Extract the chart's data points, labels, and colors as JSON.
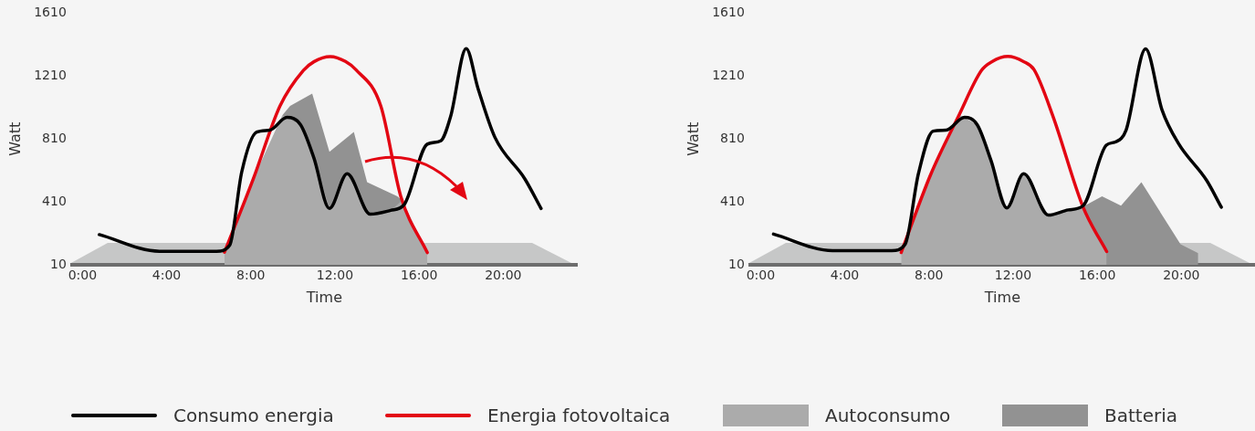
{
  "chart_data": [
    {
      "type": "line",
      "xlabel": "Time",
      "ylabel": "Watt",
      "xlim": [
        -0.5,
        23.5
      ],
      "xticks": [
        {
          "value": 0,
          "label": "0:00"
        },
        {
          "value": 4,
          "label": "4:00"
        },
        {
          "value": 8,
          "label": "8:00"
        },
        {
          "value": 12,
          "label": "12:00"
        },
        {
          "value": 16,
          "label": "16:00"
        },
        {
          "value": 20,
          "label": "20:00"
        }
      ],
      "ylim": [
        10,
        1610
      ],
      "yticks": [
        10,
        410,
        810,
        1210,
        1610
      ],
      "legend": "bottom",
      "series": [
        {
          "name": "Consumo energia",
          "type": "line",
          "color": "#000000",
          "x": [
            0.8,
            3.66,
            6.37,
            7.0,
            7.57,
            8.28,
            8.9,
            9.72,
            10.37,
            11.0,
            11.74,
            12.58,
            13.68,
            14.65,
            15.29,
            16.39,
            17.03,
            17.5,
            18.24,
            18.8,
            19.6,
            21.03,
            21.8
          ],
          "values": [
            202,
            96,
            96,
            135,
            600,
            854,
            866,
            947,
            900,
            690,
            368,
            589,
            332,
            356,
            392,
            777,
            798,
            953,
            1385,
            1132,
            822,
            556,
            368
          ]
        },
        {
          "name": "Energia fotovoltaica",
          "type": "line",
          "color": "#e30613",
          "x": [
            6.75,
            8.12,
            9.39,
            10.5,
            11.0,
            11.78,
            12.5,
            13.0,
            14.18,
            15.13,
            16.39
          ],
          "values": [
            90,
            556,
            1020,
            1246,
            1301,
            1334,
            1303,
            1250,
            1020,
            446,
            88
          ]
        },
        {
          "name": "Autoconsumo",
          "type": "area",
          "color": "#ababab",
          "x": [
            6.75,
            8.12,
            9.5,
            10.37,
            11.0,
            11.74,
            12.58,
            13.68,
            14.65,
            15.2,
            16.39
          ],
          "values": [
            90,
            556,
            960,
            900,
            690,
            368,
            589,
            332,
            356,
            420,
            88
          ]
        },
        {
          "name": "Batteria",
          "type": "area",
          "color": "#929292",
          "x": [
            9.5,
            9.87,
            10.92,
            11.74,
            12.9,
            13.53,
            14.97,
            15.2
          ],
          "values": [
            960,
            1020,
            1098,
            728,
            854,
            535,
            446,
            420
          ]
        }
      ]
    },
    {
      "type": "line",
      "xlabel": "Time",
      "ylabel": "Watt",
      "xlim": [
        -0.5,
        23.5
      ],
      "xticks": [
        {
          "value": 0,
          "label": "0:00"
        },
        {
          "value": 4,
          "label": "4:00"
        },
        {
          "value": 8,
          "label": "8:00"
        },
        {
          "value": 12,
          "label": "12:00"
        },
        {
          "value": 16,
          "label": "16:00"
        },
        {
          "value": 20,
          "label": "20:00"
        }
      ],
      "ylim": [
        10,
        1610
      ],
      "yticks": [
        10,
        410,
        810,
        1210,
        1610
      ],
      "series": [
        {
          "type": "line",
          "color": "#000000",
          "x": [
            0.61,
            3.42,
            6.23,
            6.87,
            7.5,
            8.2,
            8.82,
            9.69,
            10.3,
            10.95,
            11.7,
            12.5,
            13.68,
            14.63,
            15.33,
            16.43,
            16.89,
            17.37,
            18.3,
            19.08,
            19.87,
            21.2,
            21.9
          ],
          "values": [
            205,
            100,
            100,
            141,
            589,
            860,
            866,
            947,
            900,
            674,
            372,
            589,
            326,
            359,
            386,
            770,
            792,
            866,
            1383,
            995,
            780,
            547,
            376
          ]
        },
        {
          "type": "line",
          "color": "#e30613",
          "x": [
            6.68,
            8.1,
            9.4,
            10.5,
            11.0,
            11.75,
            12.5,
            13.0,
            13.9,
            15.33,
            16.45
          ],
          "values": [
            88,
            589,
            953,
            1246,
            1302,
            1335,
            1302,
            1250,
            953,
            376,
            94
          ]
        },
        {
          "type": "area",
          "color": "#ababab",
          "x": [
            6.68,
            8.1,
            9.5,
            10.3,
            10.95,
            11.7,
            12.5,
            13.68,
            14.63,
            15.33,
            16.45
          ],
          "values": [
            88,
            589,
            960,
            900,
            674,
            372,
            589,
            326,
            359,
            380,
            94
          ]
        },
        {
          "type": "area",
          "color": "#929292",
          "x": [
            15.33,
            16.23,
            17.13,
            18.1,
            19.96,
            20.8
          ],
          "values": [
            380,
            446,
            386,
            535,
            141,
            84
          ]
        }
      ]
    }
  ]
}
